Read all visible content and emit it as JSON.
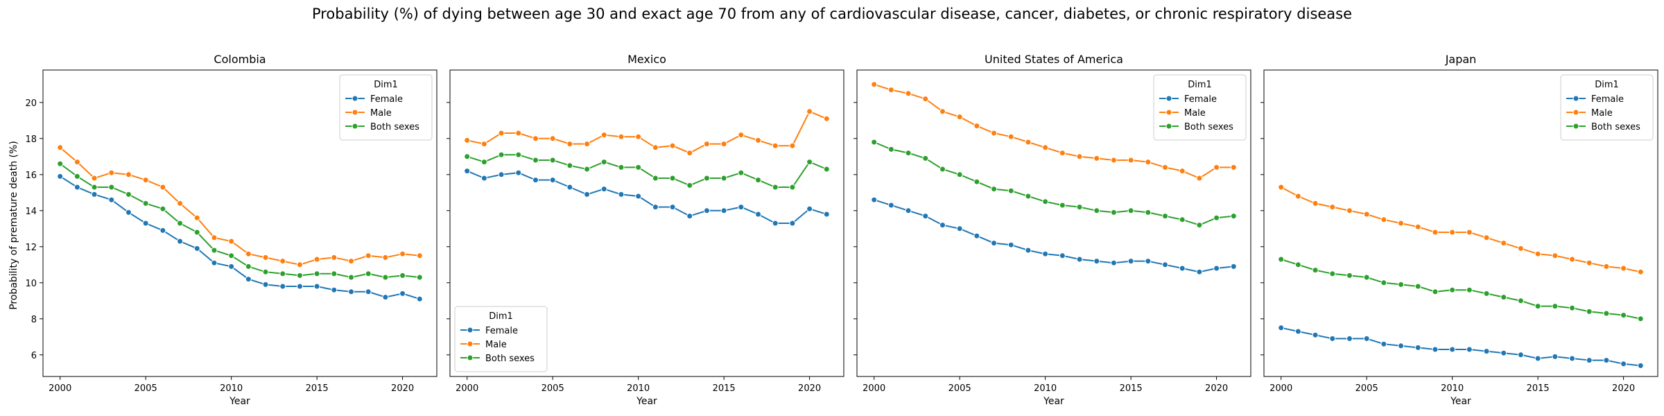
{
  "figure": {
    "suptitle": "Probability (%) of dying between age 30 and exact age 70 from any of cardiovascular disease, cancer, diabetes, or chronic respiratory disease",
    "ylabel": "Probability of premature death (%)",
    "xlabel": "Year"
  },
  "colors": {
    "Female": "#1f77b4",
    "Male": "#ff7f0e",
    "Both sexes": "#2ca02c"
  },
  "chart_data": [
    {
      "type": "line",
      "title": "Colombia",
      "xlabel": "Year",
      "ylabel": "Probability of premature death (%)",
      "xlim": [
        1999,
        2022
      ],
      "ylim": [
        4.8,
        21.8
      ],
      "xticks": [
        2000,
        2005,
        2010,
        2015,
        2020
      ],
      "yticks": [
        6,
        8,
        10,
        12,
        14,
        16,
        18,
        20
      ],
      "legend": {
        "title": "Dim1",
        "position": "upper right"
      },
      "x": [
        2000,
        2001,
        2002,
        2003,
        2004,
        2005,
        2006,
        2007,
        2008,
        2009,
        2010,
        2011,
        2012,
        2013,
        2014,
        2015,
        2016,
        2017,
        2018,
        2019,
        2020,
        2021
      ],
      "series": [
        {
          "name": "Female",
          "values": [
            15.9,
            15.3,
            14.9,
            14.6,
            13.9,
            13.3,
            12.9,
            12.3,
            11.9,
            11.1,
            10.9,
            10.2,
            9.9,
            9.8,
            9.8,
            9.8,
            9.6,
            9.5,
            9.5,
            9.2,
            9.4,
            9.1
          ]
        },
        {
          "name": "Male",
          "values": [
            17.5,
            16.7,
            15.8,
            16.1,
            16.0,
            15.7,
            15.3,
            14.4,
            13.6,
            12.5,
            12.3,
            11.6,
            11.4,
            11.2,
            11.0,
            11.3,
            11.4,
            11.2,
            11.5,
            11.4,
            11.6,
            11.5
          ]
        },
        {
          "name": "Both sexes",
          "values": [
            16.6,
            15.9,
            15.3,
            15.3,
            14.9,
            14.4,
            14.1,
            13.3,
            12.8,
            11.8,
            11.5,
            10.9,
            10.6,
            10.5,
            10.4,
            10.5,
            10.5,
            10.3,
            10.5,
            10.3,
            10.4,
            10.3
          ]
        }
      ]
    },
    {
      "type": "line",
      "title": "Mexico",
      "xlabel": "Year",
      "ylabel": "",
      "xlim": [
        1999,
        2022
      ],
      "ylim": [
        4.8,
        21.8
      ],
      "xticks": [
        2000,
        2005,
        2010,
        2015,
        2020
      ],
      "yticks": [
        6,
        8,
        10,
        12,
        14,
        16,
        18,
        20
      ],
      "legend": {
        "title": "Dim1",
        "position": "lower left"
      },
      "x": [
        2000,
        2001,
        2002,
        2003,
        2004,
        2005,
        2006,
        2007,
        2008,
        2009,
        2010,
        2011,
        2012,
        2013,
        2014,
        2015,
        2016,
        2017,
        2018,
        2019,
        2020,
        2021
      ],
      "series": [
        {
          "name": "Female",
          "values": [
            16.2,
            15.8,
            16.0,
            16.1,
            15.7,
            15.7,
            15.3,
            14.9,
            15.2,
            14.9,
            14.8,
            14.2,
            14.2,
            13.7,
            14.0,
            14.0,
            14.2,
            13.8,
            13.3,
            13.3,
            14.1,
            13.8
          ]
        },
        {
          "name": "Male",
          "values": [
            17.9,
            17.7,
            18.3,
            18.3,
            18.0,
            18.0,
            17.7,
            17.7,
            18.2,
            18.1,
            18.1,
            17.5,
            17.6,
            17.2,
            17.7,
            17.7,
            18.2,
            17.9,
            17.6,
            17.6,
            19.5,
            19.1
          ]
        },
        {
          "name": "Both sexes",
          "values": [
            17.0,
            16.7,
            17.1,
            17.1,
            16.8,
            16.8,
            16.5,
            16.3,
            16.7,
            16.4,
            16.4,
            15.8,
            15.8,
            15.4,
            15.8,
            15.8,
            16.1,
            15.7,
            15.3,
            15.3,
            16.7,
            16.3
          ]
        }
      ]
    },
    {
      "type": "line",
      "title": "United States of America",
      "xlabel": "Year",
      "ylabel": "",
      "xlim": [
        1999,
        2022
      ],
      "ylim": [
        4.8,
        21.8
      ],
      "xticks": [
        2000,
        2005,
        2010,
        2015,
        2020
      ],
      "yticks": [
        6,
        8,
        10,
        12,
        14,
        16,
        18,
        20
      ],
      "legend": {
        "title": "Dim1",
        "position": "upper right"
      },
      "x": [
        2000,
        2001,
        2002,
        2003,
        2004,
        2005,
        2006,
        2007,
        2008,
        2009,
        2010,
        2011,
        2012,
        2013,
        2014,
        2015,
        2016,
        2017,
        2018,
        2019,
        2020,
        2021
      ],
      "series": [
        {
          "name": "Female",
          "values": [
            14.6,
            14.3,
            14.0,
            13.7,
            13.2,
            13.0,
            12.6,
            12.2,
            12.1,
            11.8,
            11.6,
            11.5,
            11.3,
            11.2,
            11.1,
            11.2,
            11.2,
            11.0,
            10.8,
            10.6,
            10.8,
            10.9
          ]
        },
        {
          "name": "Male",
          "values": [
            21.0,
            20.7,
            20.5,
            20.2,
            19.5,
            19.2,
            18.7,
            18.3,
            18.1,
            17.8,
            17.5,
            17.2,
            17.0,
            16.9,
            16.8,
            16.8,
            16.7,
            16.4,
            16.2,
            15.8,
            16.4,
            16.4
          ]
        },
        {
          "name": "Both sexes",
          "values": [
            17.8,
            17.4,
            17.2,
            16.9,
            16.3,
            16.0,
            15.6,
            15.2,
            15.1,
            14.8,
            14.5,
            14.3,
            14.2,
            14.0,
            13.9,
            14.0,
            13.9,
            13.7,
            13.5,
            13.2,
            13.6,
            13.7
          ]
        }
      ]
    },
    {
      "type": "line",
      "title": "Japan",
      "xlabel": "Year",
      "ylabel": "",
      "xlim": [
        1999,
        2022
      ],
      "ylim": [
        4.8,
        21.8
      ],
      "xticks": [
        2000,
        2005,
        2010,
        2015,
        2020
      ],
      "yticks": [
        6,
        8,
        10,
        12,
        14,
        16,
        18,
        20
      ],
      "legend": {
        "title": "Dim1",
        "position": "upper right"
      },
      "x": [
        2000,
        2001,
        2002,
        2003,
        2004,
        2005,
        2006,
        2007,
        2008,
        2009,
        2010,
        2011,
        2012,
        2013,
        2014,
        2015,
        2016,
        2017,
        2018,
        2019,
        2020,
        2021
      ],
      "series": [
        {
          "name": "Female",
          "values": [
            7.5,
            7.3,
            7.1,
            6.9,
            6.9,
            6.9,
            6.6,
            6.5,
            6.4,
            6.3,
            6.3,
            6.3,
            6.2,
            6.1,
            6.0,
            5.8,
            5.9,
            5.8,
            5.7,
            5.7,
            5.5,
            5.4
          ]
        },
        {
          "name": "Male",
          "values": [
            15.3,
            14.8,
            14.4,
            14.2,
            14.0,
            13.8,
            13.5,
            13.3,
            13.1,
            12.8,
            12.8,
            12.8,
            12.5,
            12.2,
            11.9,
            11.6,
            11.5,
            11.3,
            11.1,
            10.9,
            10.8,
            10.6
          ]
        },
        {
          "name": "Both sexes",
          "values": [
            11.3,
            11.0,
            10.7,
            10.5,
            10.4,
            10.3,
            10.0,
            9.9,
            9.8,
            9.5,
            9.6,
            9.6,
            9.4,
            9.2,
            9.0,
            8.7,
            8.7,
            8.6,
            8.4,
            8.3,
            8.2,
            8.0
          ]
        }
      ]
    }
  ]
}
